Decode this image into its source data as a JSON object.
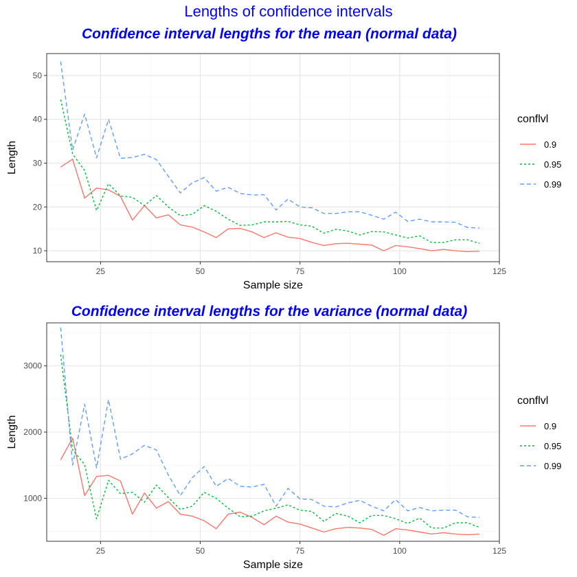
{
  "title": "Lengths of confidence intervals",
  "chart_data": [
    {
      "type": "line",
      "title": "Confidence interval lengths for the mean (normal data)",
      "xlabel": "Sample size",
      "ylabel": "Length",
      "xlim": [
        11.5,
        125
      ],
      "ylim": [
        7.5,
        55
      ],
      "xticks": [
        25,
        50,
        75,
        100,
        125
      ],
      "yticks": [
        10,
        20,
        30,
        40,
        50
      ],
      "grid": true,
      "legend": {
        "title": "conflvl",
        "position": "right"
      },
      "x": [
        15,
        18,
        21,
        24,
        27,
        30,
        33,
        36,
        39,
        42,
        45,
        48,
        51,
        54,
        57,
        60,
        63,
        66,
        69,
        72,
        75,
        78,
        81,
        84,
        87,
        90,
        93,
        96,
        99,
        102,
        105,
        108,
        111,
        114,
        117,
        120
      ],
      "series": [
        {
          "name": "0.9",
          "color": "#F8766D",
          "dash": "solid",
          "values": [
            29.1,
            30.9,
            22.0,
            24.3,
            23.9,
            22.4,
            17.0,
            20.3,
            17.5,
            18.2,
            15.9,
            15.4,
            14.3,
            13.0,
            15.0,
            15.1,
            14.3,
            13.0,
            14.1,
            13.1,
            12.8,
            11.9,
            11.2,
            11.6,
            11.7,
            11.5,
            11.3,
            10.0,
            11.2,
            10.9,
            10.5,
            10.0,
            10.3,
            10.0,
            9.8,
            9.9
          ]
        },
        {
          "name": "0.95",
          "color": "#00BA38",
          "dash": "3,3",
          "values": [
            44.5,
            32.1,
            28.3,
            19.2,
            25.3,
            22.5,
            22.2,
            20.3,
            22.6,
            20.0,
            18.0,
            18.3,
            20.3,
            19.0,
            17.2,
            15.8,
            15.9,
            16.6,
            16.6,
            16.7,
            15.9,
            15.6,
            14.0,
            14.9,
            14.5,
            13.6,
            14.4,
            14.3,
            13.6,
            12.9,
            13.4,
            11.9,
            11.9,
            12.5,
            12.5,
            11.7
          ]
        },
        {
          "name": "0.99",
          "color": "#619CFF",
          "dash": "6,4",
          "values": [
            53.2,
            33.0,
            41.2,
            31.2,
            40.0,
            31.1,
            31.3,
            32.0,
            30.8,
            27.0,
            23.2,
            25.5,
            26.7,
            23.6,
            24.5,
            23.1,
            22.7,
            22.8,
            19.3,
            21.8,
            20.0,
            19.8,
            18.5,
            18.5,
            18.9,
            18.9,
            18.1,
            17.2,
            18.8,
            16.7,
            17.2,
            16.6,
            16.6,
            16.5,
            15.3,
            15.2
          ]
        }
      ]
    },
    {
      "type": "line",
      "title": "Confidence interval lengths for the variance (normal data)",
      "xlabel": "Sample size",
      "ylabel": "Length",
      "xlim": [
        11.5,
        125
      ],
      "ylim": [
        350,
        3650
      ],
      "xticks": [
        25,
        50,
        75,
        100,
        125
      ],
      "yticks": [
        1000,
        2000,
        3000
      ],
      "grid": true,
      "legend": {
        "title": "conflvl",
        "position": "right"
      },
      "x": [
        15,
        18,
        21,
        24,
        27,
        30,
        33,
        36,
        39,
        42,
        45,
        48,
        51,
        54,
        57,
        60,
        63,
        66,
        69,
        72,
        75,
        78,
        81,
        84,
        87,
        90,
        93,
        96,
        99,
        102,
        105,
        108,
        111,
        114,
        117,
        120
      ],
      "series": [
        {
          "name": "0.9",
          "color": "#F8766D",
          "dash": "solid",
          "values": [
            1580,
            1910,
            1040,
            1330,
            1345,
            1260,
            760,
            1080,
            850,
            950,
            760,
            730,
            660,
            540,
            760,
            790,
            710,
            600,
            730,
            640,
            610,
            550,
            490,
            540,
            560,
            550,
            530,
            440,
            540,
            520,
            490,
            460,
            480,
            460,
            450,
            460
          ]
        },
        {
          "name": "0.95",
          "color": "#00BA38",
          "dash": "3,3",
          "values": [
            3170,
            1730,
            1510,
            690,
            1270,
            1070,
            1090,
            940,
            1200,
            1010,
            830,
            880,
            1090,
            1000,
            850,
            720,
            730,
            810,
            850,
            900,
            820,
            800,
            650,
            770,
            730,
            630,
            740,
            740,
            690,
            620,
            700,
            550,
            550,
            630,
            630,
            560
          ]
        },
        {
          "name": "0.99",
          "color": "#619CFF",
          "dash": "6,4",
          "values": [
            3580,
            1500,
            2420,
            1460,
            2490,
            1590,
            1670,
            1800,
            1730,
            1350,
            1040,
            1310,
            1480,
            1180,
            1300,
            1180,
            1170,
            1210,
            880,
            1150,
            990,
            980,
            880,
            870,
            930,
            970,
            880,
            810,
            980,
            810,
            860,
            810,
            820,
            820,
            720,
            710
          ]
        }
      ]
    }
  ]
}
